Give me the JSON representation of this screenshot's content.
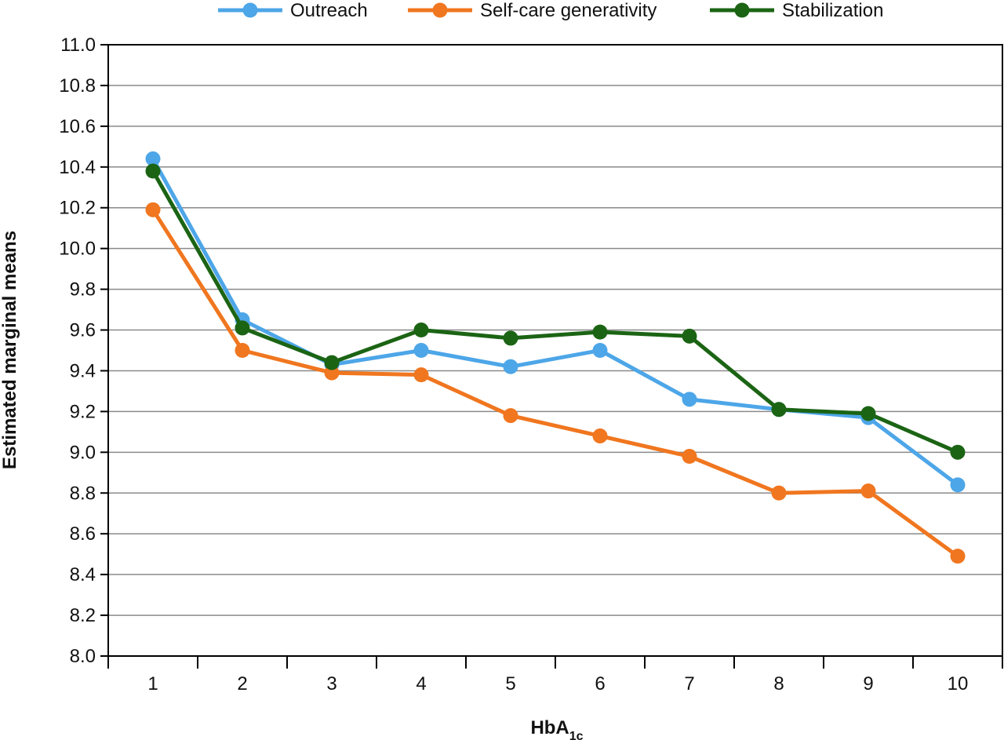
{
  "chart_data": {
    "type": "line",
    "title": "",
    "xlabel": "HbA",
    "xlabel_subscript": "1c",
    "ylabel": "Estimated marginal means",
    "categories": [
      "1",
      "2",
      "3",
      "4",
      "5",
      "6",
      "7",
      "8",
      "9",
      "10"
    ],
    "ylim": [
      8.0,
      11.0
    ],
    "yticks": [
      "8.0",
      "8.2",
      "8.4",
      "8.6",
      "8.8",
      "9.0",
      "9.2",
      "9.4",
      "9.6",
      "9.8",
      "10.0",
      "10.2",
      "10.4",
      "10.6",
      "10.8",
      "11.0"
    ],
    "grid": true,
    "legend_position": "top",
    "series": [
      {
        "name": "Outreach",
        "color": "#4da6e8",
        "values": [
          10.44,
          9.65,
          9.43,
          9.5,
          9.42,
          9.5,
          9.26,
          9.21,
          9.17,
          8.84
        ]
      },
      {
        "name": "Self-care generativity",
        "color": "#f0761f",
        "values": [
          10.19,
          9.5,
          9.39,
          9.38,
          9.18,
          9.08,
          8.98,
          8.8,
          8.81,
          8.49
        ]
      },
      {
        "name": "Stabilization",
        "color": "#1b6414",
        "values": [
          10.38,
          9.61,
          9.44,
          9.6,
          9.56,
          9.59,
          9.57,
          9.21,
          9.19,
          9.0
        ]
      }
    ]
  }
}
